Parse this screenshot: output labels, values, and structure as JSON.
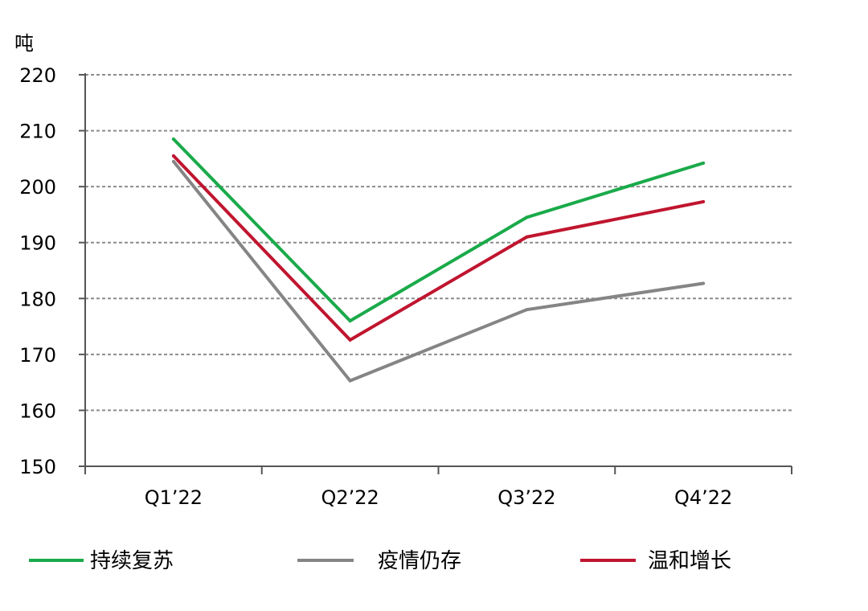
{
  "chart_data": {
    "type": "line",
    "ylabel": "吨",
    "xlabel": "",
    "title": "",
    "categories": [
      "Q1’22",
      "Q2’22",
      "Q3’22",
      "Q4’22"
    ],
    "ylim": [
      150,
      220
    ],
    "yticks": [
      150,
      160,
      170,
      180,
      190,
      200,
      210,
      220
    ],
    "grid": "horizontal-dashed",
    "legend": "bottom",
    "series": [
      {
        "name": "持续复苏",
        "color": "#1aaa4a",
        "values": [
          208.5,
          176.0,
          194.5,
          204.2
        ]
      },
      {
        "name": "疫情仍存",
        "color": "#858585",
        "values": [
          204.5,
          165.3,
          178.0,
          182.7
        ]
      },
      {
        "name": "温和增长",
        "color": "#c0152f",
        "values": [
          205.5,
          172.6,
          191.0,
          197.3
        ]
      }
    ]
  }
}
